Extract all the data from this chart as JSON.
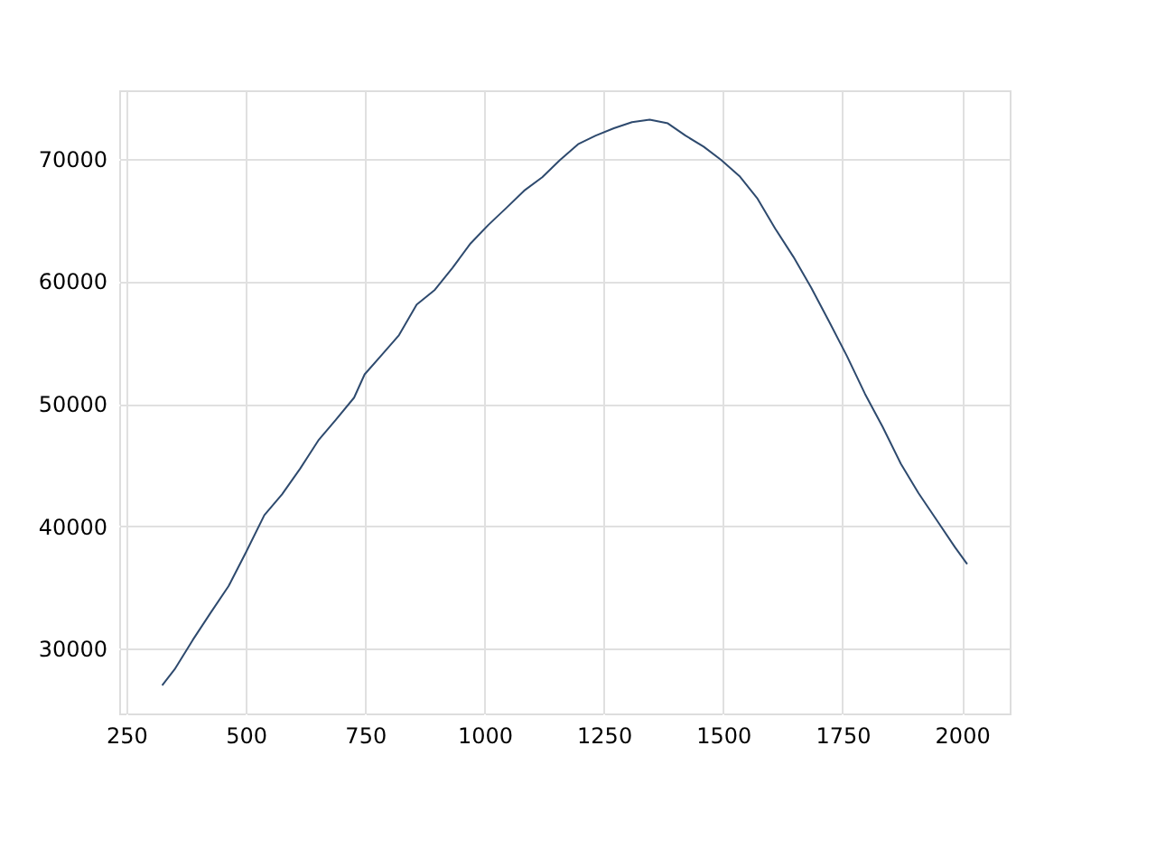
{
  "chart_data": {
    "type": "line",
    "x": [
      325,
      351,
      389,
      426,
      464,
      501,
      539,
      576,
      614,
      652,
      689,
      727,
      749,
      783,
      821,
      858,
      896,
      933,
      971,
      1008,
      1046,
      1083,
      1121,
      1158,
      1196,
      1233,
      1271,
      1309,
      1346,
      1384,
      1421,
      1459,
      1496,
      1534,
      1571,
      1609,
      1647,
      1684,
      1722,
      1759,
      1797,
      1834,
      1872,
      1909,
      1947,
      1985,
      2011
    ],
    "series": [
      {
        "color": "#2e4a6e",
        "values": [
          27000,
          28300,
          30700,
          32900,
          35100,
          37900,
          40900,
          42600,
          44700,
          47000,
          48700,
          50500,
          52400,
          53900,
          55600,
          58100,
          59300,
          61100,
          63100,
          64600,
          66000,
          67400,
          68500,
          69900,
          71200,
          71900,
          72500,
          73000,
          73200,
          72900,
          71900,
          71000,
          69900,
          68600,
          66800,
          64300,
          62000,
          59500,
          56700,
          53900,
          50800,
          48100,
          45100,
          42700,
          40500,
          38300,
          36900
        ]
      }
    ],
    "xlim": [
      235,
      2100
    ],
    "ylim": [
      24700,
      75600
    ],
    "xticks": [
      250,
      500,
      750,
      1000,
      1250,
      1500,
      1750,
      2000
    ],
    "yticks": [
      30000,
      40000,
      50000,
      60000,
      70000
    ],
    "grid": true,
    "line_style": "solid",
    "marker": "none"
  }
}
